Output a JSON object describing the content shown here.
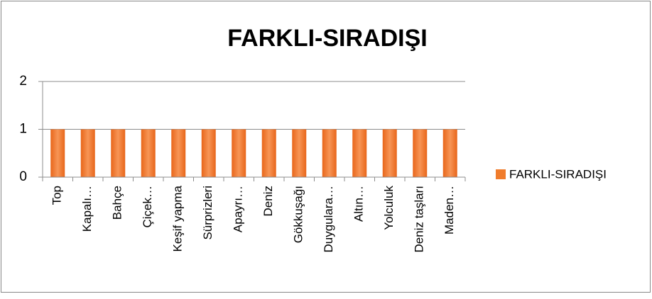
{
  "chart_data": {
    "type": "bar",
    "title": "FARKLI-SIRADIŞI",
    "categories": [
      "Top",
      "Kapalı…",
      "Bahçe",
      "Çiçek…",
      "Keşif yapma",
      "Sürprizleri",
      "Apayrı…",
      "Deniz",
      "Gökkuşağı",
      "Duygulara…",
      "Altın…",
      "Yolculuk",
      "Deniz taşları",
      "Maden…"
    ],
    "series": [
      {
        "name": "FARKLI-SIRADIŞI",
        "color": "#f07c2c",
        "values": [
          1,
          1,
          1,
          1,
          1,
          1,
          1,
          1,
          1,
          1,
          1,
          1,
          1,
          1
        ]
      }
    ],
    "ylim": [
      0,
      2
    ],
    "yticks": [
      0,
      1,
      2
    ],
    "grid": true,
    "legend": "right"
  }
}
